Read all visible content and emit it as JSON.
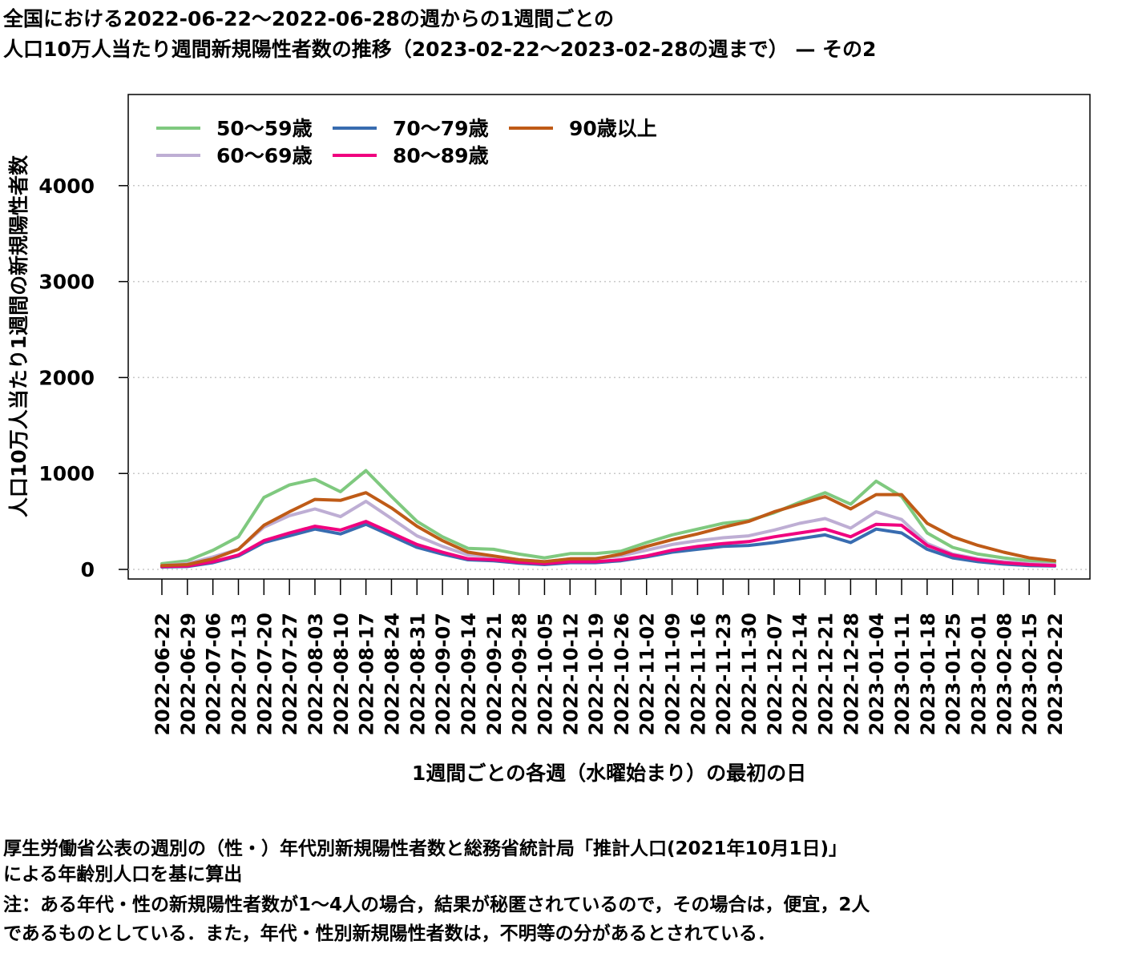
{
  "title": {
    "line1": "全国における2022-06-22〜2022-06-28の週からの1週間ごとの",
    "line2": "人口10万人当たり週間新規陽性者数の推移（2023-02-22〜2023-02-28の週まで） — その2"
  },
  "footnote": {
    "line1": "厚生労働省公表の週別の（性・）年代別新規陽性者数と総務省統計局「推計人口(2021年10月1日)」",
    "line2": "による年齢別人口を基に算出",
    "line3": "注：ある年代・性の新規陽性者数が1〜4人の場合，結果が秘匿されているので，その場合は，便宜，2人",
    "line4": "であるものとしている．また，年代・性別新規陽性者数は，不明等の分があるとされている．"
  },
  "chart_data": {
    "type": "line",
    "xlabel": "1週間ごとの各週（水曜始まり）の最初の日",
    "ylabel": "人口10万人当たり1週間の新規陽性者数",
    "ylim": [
      -100,
      4950
    ],
    "yticks": [
      0,
      1000,
      2000,
      3000,
      4000
    ],
    "grid": "horizontal dotted",
    "legend_position": "top-left",
    "categories": [
      "2022-06-22",
      "2022-06-29",
      "2022-07-06",
      "2022-07-13",
      "2022-07-20",
      "2022-07-27",
      "2022-08-03",
      "2022-08-10",
      "2022-08-17",
      "2022-08-24",
      "2022-08-31",
      "2022-09-07",
      "2022-09-14",
      "2022-09-21",
      "2022-09-28",
      "2022-10-05",
      "2022-10-12",
      "2022-10-19",
      "2022-10-26",
      "2022-11-02",
      "2022-11-09",
      "2022-11-16",
      "2022-11-23",
      "2022-11-30",
      "2022-12-07",
      "2022-12-14",
      "2022-12-21",
      "2022-12-28",
      "2023-01-04",
      "2023-01-11",
      "2023-01-18",
      "2023-01-25",
      "2023-02-01",
      "2023-02-08",
      "2023-02-15",
      "2023-02-22"
    ],
    "series": [
      {
        "name": "50〜59歳",
        "color": "#7fc97f",
        "values": [
          60,
          90,
          200,
          340,
          750,
          880,
          940,
          810,
          1030,
          760,
          500,
          340,
          220,
          210,
          160,
          120,
          165,
          165,
          190,
          280,
          360,
          420,
          480,
          510,
          590,
          700,
          800,
          680,
          920,
          760,
          380,
          230,
          160,
          120,
          90,
          70
        ]
      },
      {
        "name": "60〜69歳",
        "color": "#beaed4",
        "values": [
          40,
          60,
          130,
          210,
          440,
          560,
          630,
          550,
          710,
          530,
          350,
          240,
          150,
          130,
          100,
          80,
          110,
          115,
          140,
          200,
          260,
          300,
          330,
          350,
          410,
          480,
          530,
          430,
          600,
          520,
          270,
          160,
          110,
          80,
          60,
          50
        ]
      },
      {
        "name": "70〜79歳",
        "color": "#386cb0",
        "values": [
          25,
          30,
          70,
          140,
          280,
          350,
          420,
          370,
          470,
          350,
          230,
          160,
          100,
          90,
          65,
          50,
          70,
          70,
          90,
          130,
          180,
          210,
          240,
          250,
          280,
          320,
          360,
          280,
          420,
          380,
          210,
          120,
          80,
          55,
          40,
          35
        ]
      },
      {
        "name": "80〜89歳",
        "color": "#f0027f",
        "values": [
          30,
          35,
          80,
          150,
          300,
          380,
          450,
          410,
          500,
          380,
          260,
          180,
          110,
          100,
          75,
          60,
          80,
          80,
          100,
          140,
          200,
          240,
          270,
          290,
          340,
          380,
          420,
          340,
          470,
          460,
          250,
          150,
          100,
          70,
          50,
          40
        ]
      },
      {
        "name": "90歳以上",
        "color": "#bf5b17",
        "values": [
          40,
          50,
          110,
          210,
          460,
          600,
          730,
          720,
          800,
          640,
          450,
          300,
          180,
          140,
          100,
          80,
          110,
          110,
          160,
          240,
          310,
          370,
          440,
          500,
          600,
          680,
          760,
          630,
          780,
          780,
          480,
          340,
          250,
          180,
          120,
          90
        ]
      }
    ]
  }
}
